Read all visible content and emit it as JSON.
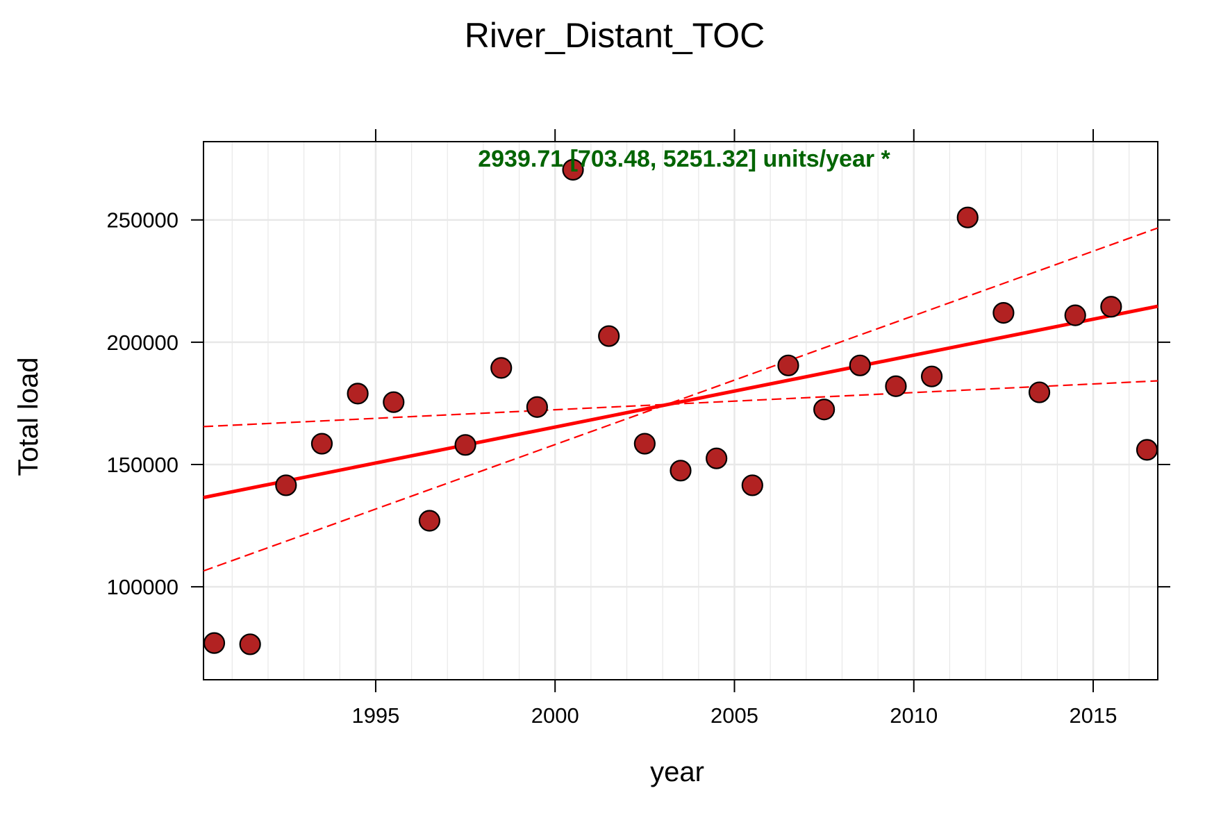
{
  "chart_data": {
    "type": "scatter",
    "title": "River_Distant_TOC",
    "xlabel": "year",
    "ylabel": "Total load",
    "annotation": "2939.71 [703.48, 5251.32] units/year *",
    "xlim": [
      1990.2,
      2016.8
    ],
    "ylim": [
      62000,
      282000
    ],
    "x_ticks": [
      1995,
      2000,
      2005,
      2010,
      2015
    ],
    "y_ticks": [
      100000,
      150000,
      200000,
      250000
    ],
    "grid": true,
    "points": [
      {
        "x": 1990.5,
        "y": 77000
      },
      {
        "x": 1991.5,
        "y": 76500
      },
      {
        "x": 1992.5,
        "y": 141500
      },
      {
        "x": 1993.5,
        "y": 158500
      },
      {
        "x": 1994.5,
        "y": 179000
      },
      {
        "x": 1995.5,
        "y": 175500
      },
      {
        "x": 1996.5,
        "y": 127000
      },
      {
        "x": 1997.5,
        "y": 158000
      },
      {
        "x": 1998.5,
        "y": 189500
      },
      {
        "x": 1999.5,
        "y": 173500
      },
      {
        "x": 2000.5,
        "y": 270500
      },
      {
        "x": 2001.5,
        "y": 202500
      },
      {
        "x": 2002.5,
        "y": 158500
      },
      {
        "x": 2003.5,
        "y": 147500
      },
      {
        "x": 2004.5,
        "y": 152500
      },
      {
        "x": 2005.5,
        "y": 141500
      },
      {
        "x": 2006.5,
        "y": 190500
      },
      {
        "x": 2007.5,
        "y": 172500
      },
      {
        "x": 2008.5,
        "y": 190500
      },
      {
        "x": 2009.5,
        "y": 182000
      },
      {
        "x": 2010.5,
        "y": 186000
      },
      {
        "x": 2011.5,
        "y": 251000
      },
      {
        "x": 2012.5,
        "y": 212000
      },
      {
        "x": 2013.5,
        "y": 179500
      },
      {
        "x": 2014.5,
        "y": 211000
      },
      {
        "x": 2015.5,
        "y": 214500
      },
      {
        "x": 2016.5,
        "y": 156000
      }
    ],
    "trend_line": {
      "x": [
        1990.2,
        2016.8
      ],
      "y": [
        136500,
        214700
      ]
    },
    "ci_lower": {
      "x": [
        1990.2,
        2016.8
      ],
      "y": [
        165500,
        184200
      ]
    },
    "ci_upper": {
      "x": [
        1990.2,
        2016.8
      ],
      "y": [
        106500,
        246700
      ]
    },
    "colors": {
      "point_fill": "#b22222",
      "point_stroke": "#000000",
      "trend": "#ff0000",
      "annotation": "#006400",
      "grid": "#e8e8e8"
    }
  }
}
